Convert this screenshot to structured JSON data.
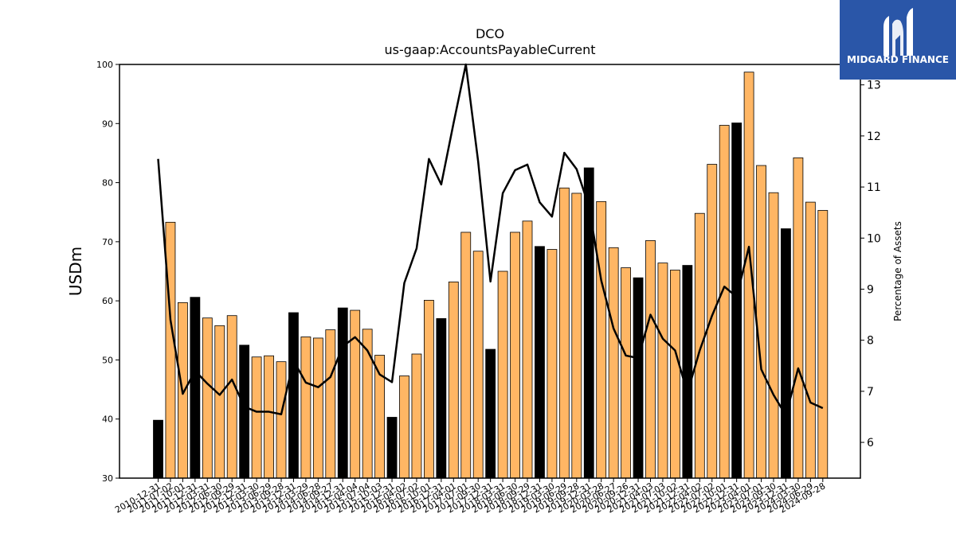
{
  "chart_data": {
    "type": "bar",
    "title": "DCO",
    "subtitle": "us-gaap:AccountsPayableCurrent",
    "ylabel": "USDm",
    "y2label": "Percentage of Assets",
    "ylim": [
      30,
      100
    ],
    "y2lim": [
      5.3,
      13.4
    ],
    "yticks": [
      30,
      40,
      50,
      60,
      70,
      80,
      90,
      100
    ],
    "y2ticks": [
      6,
      7,
      8,
      9,
      10,
      11,
      12,
      13
    ],
    "categories": [
      "2010-12-31",
      "2011-07-02",
      "2011-10-01",
      "2011-12-31",
      "2012-03-31",
      "2012-06-30",
      "2012-09-29",
      "2012-12-31",
      "2013-03-30",
      "2013-06-29",
      "2013-09-28",
      "2013-12-31",
      "2014-03-29",
      "2014-06-28",
      "2014-09-27",
      "2014-12-31",
      "2015-04-04",
      "2015-07-04",
      "2015-10-03",
      "2015-12-31",
      "2016-04-02",
      "2016-07-02",
      "2016-10-01",
      "2016-12-31",
      "2017-04-01",
      "2017-07-01",
      "2017-09-30",
      "2017-12-31",
      "2018-03-31",
      "2018-06-30",
      "2018-09-29",
      "2018-12-31",
      "2019-03-30",
      "2019-06-29",
      "2019-09-28",
      "2019-12-31",
      "2020-03-28",
      "2020-06-27",
      "2020-09-26",
      "2020-12-31",
      "2021-04-03",
      "2021-07-03",
      "2021-10-02",
      "2021-12-31",
      "2022-04-02",
      "2022-07-02",
      "2022-10-01",
      "2022-12-31",
      "2023-04-01",
      "2023-07-01",
      "2023-09-30",
      "2023-12-31",
      "2024-03-30",
      "2024-06-29",
      "2024-09-28"
    ],
    "values": [
      39.8,
      73.3,
      59.7,
      60.6,
      57.1,
      55.8,
      57.5,
      52.5,
      50.5,
      50.7,
      49.7,
      58.0,
      53.9,
      53.7,
      55.1,
      58.8,
      58.4,
      55.2,
      50.8,
      40.3,
      47.3,
      51.0,
      60.1,
      57.0,
      63.2,
      71.6,
      68.4,
      51.8,
      65.0,
      71.6,
      73.5,
      69.2,
      68.7,
      79.1,
      78.2,
      82.5,
      76.8,
      69.0,
      65.6,
      63.9,
      70.2,
      66.4,
      65.2,
      66.0,
      74.8,
      83.1,
      89.7,
      90.1,
      98.7,
      82.9,
      78.3,
      72.2,
      84.2,
      76.7,
      75.3
    ],
    "highlight_labels": [
      "2010-12-31",
      "2011-12-31",
      "2012-12-31",
      "2013-12-31",
      "2014-12-31",
      "2015-12-31",
      "2016-12-31",
      "2017-12-31",
      "2018-12-31",
      "2019-12-31",
      "2020-12-31",
      "2021-12-31",
      "2022-12-31",
      "2023-12-31"
    ],
    "line_series": [
      11.55,
      8.4,
      6.95,
      7.4,
      7.15,
      6.93,
      7.23,
      6.7,
      6.6,
      6.6,
      6.55,
      7.6,
      7.17,
      7.08,
      7.28,
      7.88,
      8.06,
      7.8,
      7.33,
      7.18,
      9.12,
      9.8,
      11.55,
      11.05,
      12.25,
      13.4,
      11.5,
      9.15,
      10.88,
      11.33,
      11.44,
      10.7,
      10.42,
      11.67,
      11.35,
      10.62,
      9.17,
      8.23,
      7.7,
      7.65,
      8.5,
      8.03,
      7.8,
      6.97,
      7.8,
      8.48,
      9.05,
      8.85,
      9.83,
      7.43,
      6.93,
      6.53,
      7.45,
      6.78,
      6.67
    ],
    "colors": {
      "bar": "#ffb664",
      "highlight_bar": "#000000",
      "line": "#000000"
    }
  },
  "logo": {
    "text": "MIDGARD FINANCE"
  }
}
